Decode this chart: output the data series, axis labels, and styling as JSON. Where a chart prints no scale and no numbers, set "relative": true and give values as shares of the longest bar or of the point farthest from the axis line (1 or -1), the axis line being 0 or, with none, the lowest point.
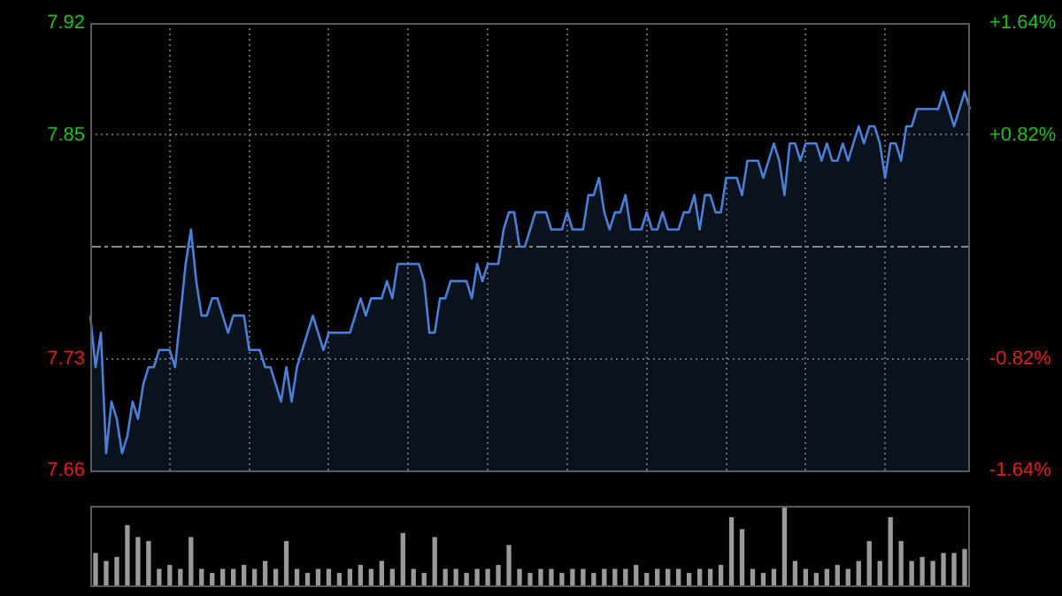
{
  "chart_data": [
    {
      "type": "area",
      "categories": [
        null,
        null,
        null,
        null,
        null,
        null,
        null,
        null,
        null,
        null,
        null,
        null,
        null,
        null,
        null,
        null,
        null,
        null,
        null,
        null,
        null,
        null,
        null,
        null,
        null,
        null,
        null,
        null,
        null,
        null,
        null,
        null,
        null,
        null,
        null,
        null,
        null,
        null,
        null,
        null,
        null,
        null,
        null,
        null,
        null,
        null,
        null,
        null,
        null,
        null,
        null,
        null,
        null,
        null,
        null,
        null,
        null,
        null,
        null,
        null,
        null,
        null,
        null,
        null,
        null,
        null,
        null,
        null,
        null,
        null,
        null,
        null,
        null,
        null,
        null,
        null,
        null,
        null,
        null,
        null,
        null,
        null,
        null,
        null,
        null,
        null,
        null,
        null,
        null,
        null,
        null,
        null,
        null,
        null,
        null,
        null,
        null,
        null,
        null,
        null,
        null,
        null,
        null,
        null,
        null,
        null,
        null,
        null,
        null,
        null,
        null,
        null,
        null,
        null,
        null,
        null,
        null,
        null,
        null,
        null,
        null,
        null,
        null,
        null,
        null,
        null,
        null,
        null,
        null,
        null,
        null,
        null,
        null,
        null,
        null,
        null,
        null,
        null,
        null,
        null,
        null,
        null,
        null,
        null,
        null,
        null,
        null,
        null,
        null,
        null,
        null,
        null,
        null,
        null,
        null,
        null,
        null,
        null,
        null,
        null,
        null,
        null,
        null,
        null,
        null,
        null,
        null
      ],
      "series": [
        {
          "color": "#4a80d8",
          "values": [
            7.75,
            7.72,
            7.74,
            7.67,
            7.7,
            7.69,
            7.67,
            7.68,
            7.7,
            7.69,
            7.71,
            7.72,
            7.72,
            7.73,
            7.73,
            7.73,
            7.72,
            7.75,
            7.78,
            7.8,
            7.77,
            7.75,
            7.75,
            7.76,
            7.76,
            7.75,
            7.74,
            7.75,
            7.75,
            7.75,
            7.73,
            7.73,
            7.73,
            7.72,
            7.72,
            7.71,
            7.7,
            7.72,
            7.7,
            7.72,
            7.73,
            7.74,
            7.75,
            7.74,
            7.73,
            7.74,
            7.74,
            7.74,
            7.74,
            7.74,
            7.75,
            7.76,
            7.75,
            7.76,
            7.76,
            7.76,
            7.77,
            7.76,
            7.78,
            7.78,
            7.78,
            7.78,
            7.78,
            7.77,
            7.74,
            7.74,
            7.76,
            7.76,
            7.77,
            7.77,
            7.77,
            7.77,
            7.76,
            7.78,
            7.77,
            7.78,
            7.78,
            7.78,
            7.8,
            7.81,
            7.81,
            7.79,
            7.79,
            7.8,
            7.81,
            7.81,
            7.81,
            7.8,
            7.8,
            7.8,
            7.81,
            7.8,
            7.8,
            7.8,
            7.82,
            7.82,
            7.83,
            7.81,
            7.8,
            7.81,
            7.81,
            7.82,
            7.8,
            7.8,
            7.8,
            7.81,
            7.8,
            7.8,
            7.81,
            7.8,
            7.8,
            7.8,
            7.81,
            7.81,
            7.82,
            7.8,
            7.82,
            7.82,
            7.81,
            7.81,
            7.83,
            7.83,
            7.83,
            7.82,
            7.84,
            7.84,
            7.84,
            7.83,
            7.84,
            7.85,
            7.84,
            7.82,
            7.85,
            7.85,
            7.84,
            7.85,
            7.85,
            7.85,
            7.84,
            7.85,
            7.84,
            7.84,
            7.85,
            7.84,
            7.85,
            7.86,
            7.85,
            7.86,
            7.86,
            7.85,
            7.83,
            7.85,
            7.85,
            7.84,
            7.86,
            7.86,
            7.87,
            7.87,
            7.87,
            7.87,
            7.87,
            7.88,
            7.87,
            7.86,
            7.87,
            7.88,
            7.87
          ]
        }
      ],
      "ylim": [
        7.66,
        7.92
      ],
      "yticks": [
        7.66,
        {
          "value": 7.725,
          "label": "7.73"
        },
        {
          "value": 7.855,
          "label": "7.85"
        },
        7.92
      ],
      "y2lim": [
        -1.64,
        1.64
      ],
      "y2ticks": [
        {
          "value": -1.64,
          "label": "-1.64%"
        },
        {
          "value": -0.82,
          "label": "-0.82%"
        },
        {
          "value": 0.82,
          "label": "+0.82%"
        },
        {
          "value": 1.64,
          "label": "+1.64%"
        }
      ],
      "ref_lines": [
        {
          "axis": "y",
          "value": 7.79,
          "line_style": "dashed"
        }
      ],
      "grid": true
    },
    {
      "type": "bar",
      "relative": true,
      "categories": [
        null,
        null,
        null,
        null,
        null,
        null,
        null,
        null,
        null,
        null,
        null,
        null,
        null,
        null,
        null,
        null,
        null,
        null,
        null,
        null,
        null,
        null,
        null,
        null,
        null,
        null,
        null,
        null,
        null,
        null,
        null,
        null,
        null,
        null,
        null,
        null,
        null,
        null,
        null,
        null,
        null,
        null,
        null,
        null,
        null,
        null,
        null,
        null,
        null,
        null,
        null,
        null,
        null,
        null,
        null,
        null,
        null,
        null,
        null,
        null,
        null,
        null,
        null,
        null,
        null,
        null,
        null,
        null,
        null,
        null,
        null,
        null,
        null,
        null,
        null,
        null,
        null,
        null,
        null,
        null,
        null,
        null,
        null
      ],
      "color": "#9a9a9a",
      "values": [
        0.4,
        0.3,
        0.35,
        0.75,
        0.6,
        0.55,
        0.2,
        0.25,
        0.2,
        0.6,
        0.2,
        0.15,
        0.2,
        0.2,
        0.25,
        0.2,
        0.3,
        0.2,
        0.55,
        0.2,
        0.15,
        0.2,
        0.2,
        0.15,
        0.2,
        0.25,
        0.2,
        0.3,
        0.2,
        0.65,
        0.2,
        0.15,
        0.6,
        0.2,
        0.2,
        0.15,
        0.2,
        0.2,
        0.25,
        0.5,
        0.2,
        0.15,
        0.2,
        0.2,
        0.15,
        0.2,
        0.2,
        0.15,
        0.2,
        0.2,
        0.2,
        0.25,
        0.15,
        0.2,
        0.2,
        0.2,
        0.15,
        0.2,
        0.2,
        0.25,
        0.85,
        0.7,
        0.2,
        0.15,
        0.2,
        1,
        0.3,
        0.2,
        0.15,
        0.2,
        0.25,
        0.2,
        0.3,
        0.55,
        0.3,
        0.85,
        0.55,
        0.3,
        0.35,
        0.3,
        0.4,
        0.4,
        0.45
      ]
    }
  ]
}
